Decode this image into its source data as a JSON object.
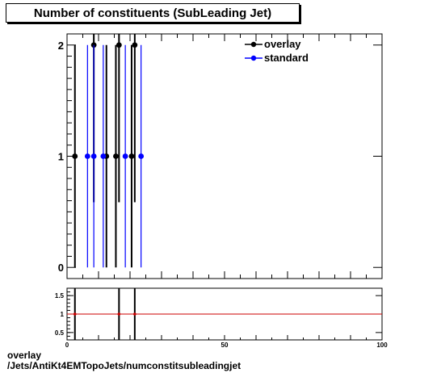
{
  "title": "Number of constituents (SubLeading Jet)",
  "footer": {
    "line1": "overlay",
    "line2": "/Jets/AntiKt4EMTopoJets/numconstitsubleadingjet"
  },
  "colors": {
    "overlay": "#000000",
    "standard": "#0000ff",
    "ratio_line": "#cc0000"
  },
  "chart_data": [
    {
      "type": "scatter",
      "title": "Number of constituents (SubLeading Jet)",
      "xlim": [
        0,
        100
      ],
      "ylim": [
        -0.1,
        2.1
      ],
      "yticks": [
        0,
        1,
        2
      ],
      "legend_position": "top-right",
      "series": [
        {
          "name": "overlay",
          "color": "#000000",
          "points": [
            {
              "x": 2.5,
              "y": 1,
              "err": 1
            },
            {
              "x": 8.5,
              "y": 2,
              "err": 1.414
            },
            {
              "x": 12.5,
              "y": 1,
              "err": 1
            },
            {
              "x": 15.5,
              "y": 1,
              "err": 1
            },
            {
              "x": 16.5,
              "y": 2,
              "err": 1.414
            },
            {
              "x": 20.5,
              "y": 1,
              "err": 1
            },
            {
              "x": 21.5,
              "y": 2,
              "err": 1.414
            }
          ]
        },
        {
          "name": "standard",
          "color": "#0000ff",
          "points": [
            {
              "x": 6.5,
              "y": 1,
              "err": 1
            },
            {
              "x": 8.5,
              "y": 1,
              "err": 1
            },
            {
              "x": 11.5,
              "y": 1,
              "err": 1
            },
            {
              "x": 18.5,
              "y": 1,
              "err": 1
            },
            {
              "x": 23.5,
              "y": 1,
              "err": 1
            }
          ]
        }
      ]
    },
    {
      "type": "line",
      "xlim": [
        0,
        100
      ],
      "ylim": [
        0.3,
        1.7
      ],
      "yticks": [
        0.5,
        1,
        1.5
      ],
      "yticklabels": [
        "0.5",
        "1",
        "1.5"
      ],
      "xticks": [
        0,
        50,
        100
      ],
      "xticklabels": [
        "0",
        "50",
        "100"
      ],
      "reference_y": 1,
      "markers": [
        {
          "x": 2.5,
          "y": 1
        },
        {
          "x": 16.5,
          "y": 1
        },
        {
          "x": 21.5,
          "y": 1
        }
      ],
      "vertical_lines": [
        2.5,
        16.5,
        21.5
      ]
    }
  ]
}
